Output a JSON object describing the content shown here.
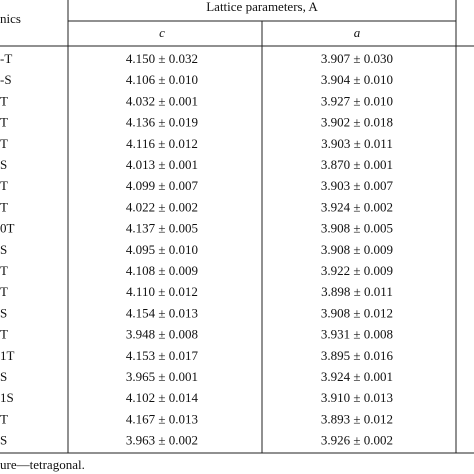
{
  "header": {
    "stub": "nics",
    "group": "Lattice parameters, A",
    "columns": [
      "c",
      "a"
    ]
  },
  "table": {
    "rows": [
      [
        "-T",
        "4.150 ± 0.032",
        "3.907 ± 0.030"
      ],
      [
        "-S",
        "4.106 ± 0.010",
        "3.904 ± 0.010"
      ],
      [
        "T",
        "4.032 ± 0.001",
        "3.927 ± 0.010"
      ],
      [
        "T",
        "4.136 ± 0.019",
        "3.902 ± 0.018"
      ],
      [
        "T",
        "4.116 ± 0.012",
        "3.903 ± 0.011"
      ],
      [
        "S",
        "4.013 ± 0.001",
        "3.870 ± 0.001"
      ],
      [
        "T",
        "4.099 ± 0.007",
        "3.903 ± 0.007"
      ],
      [
        "T",
        "4.022 ± 0.002",
        "3.924 ± 0.002"
      ],
      [
        "0T",
        "4.137 ± 0.005",
        "3.908 ± 0.005"
      ],
      [
        "S",
        "4.095 ± 0.010",
        "3.908 ± 0.009"
      ],
      [
        "T",
        "4.108 ± 0.009",
        "3.922 ± 0.009"
      ],
      [
        "T",
        "4.110 ± 0.012",
        "3.898 ± 0.011"
      ],
      [
        "S",
        "4.154 ± 0.013",
        "3.908 ± 0.012"
      ],
      [
        "T",
        "3.948 ± 0.008",
        "3.931 ± 0.008"
      ],
      [
        "1T",
        "4.153 ± 0.017",
        "3.895 ± 0.016"
      ],
      [
        "S",
        "3.965 ± 0.001",
        "3.924 ± 0.001"
      ],
      [
        "1S",
        "4.102 ± 0.014",
        "3.910 ± 0.013"
      ],
      [
        "T",
        "4.167 ± 0.013",
        "3.893 ± 0.012"
      ],
      [
        "S",
        "3.963 ± 0.002",
        "3.926 ± 0.002"
      ]
    ]
  },
  "footnote": "ure—tetragonal."
}
